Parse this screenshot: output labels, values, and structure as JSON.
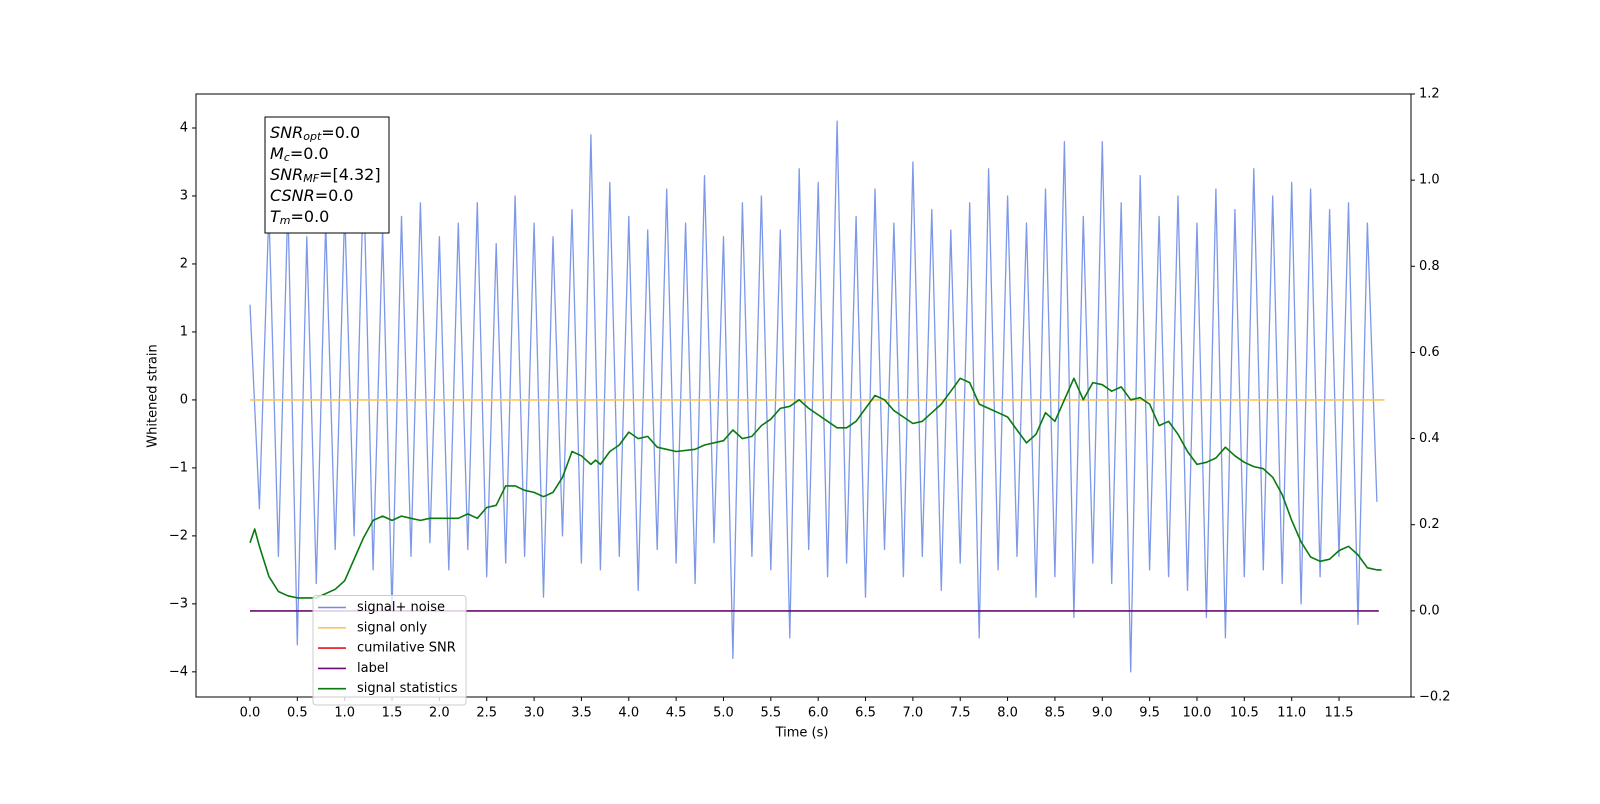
{
  "chart_data": {
    "type": "line",
    "xlabel": "Time (s)",
    "ylabel": "Whitened strain",
    "xlim": [
      -0.57,
      12.26
    ],
    "ylim": [
      -4.37,
      4.5
    ],
    "y2lim": [
      -0.2,
      1.2
    ],
    "xticks": [
      {
        "value": 0,
        "label": "0.0"
      },
      0.5,
      {
        "value": 1,
        "label": "1.0"
      },
      1.5,
      {
        "value": 2,
        "label": "2.0"
      },
      2.5,
      {
        "value": 3,
        "label": "3.0"
      },
      3.5,
      {
        "value": 4,
        "label": "4.0"
      },
      4.5,
      {
        "value": 5,
        "label": "5.0"
      },
      5.5,
      {
        "value": 6,
        "label": "6.0"
      },
      6.5,
      {
        "value": 7,
        "label": "7.0"
      },
      7.5,
      {
        "value": 8,
        "label": "8.0"
      },
      8.5,
      {
        "value": 9,
        "label": "9.0"
      },
      9.5,
      {
        "value": 10,
        "label": "10.0"
      },
      10.5,
      {
        "value": 11,
        "label": "11.0"
      },
      11.5
    ],
    "yticks": [
      {
        "value": -4,
        "label": "−4"
      },
      {
        "value": -3,
        "label": "−3"
      },
      {
        "value": -2,
        "label": "−2"
      },
      {
        "value": -1,
        "label": "−1"
      },
      0,
      1,
      2,
      3,
      4
    ],
    "y2ticks": [
      {
        "value": -0.2,
        "label": "−0.2"
      },
      {
        "value": 0,
        "label": "0.0"
      },
      0.2,
      0.4,
      0.6,
      0.8,
      {
        "value": 1,
        "label": "1.0"
      },
      1.2
    ],
    "grid": false,
    "legend": "lower left",
    "annotation": [
      {
        "base": "SNR",
        "sub": "opt",
        "text": "=0.0"
      },
      {
        "base": "M",
        "sub": "c",
        "text": "=0.0"
      },
      {
        "base": "SNR",
        "sub": "MF",
        "text": "=[4.32]"
      },
      {
        "base": "CSNR",
        "text": "=0.0"
      },
      {
        "base": "T",
        "sub": "m",
        "text": "=0.0"
      }
    ],
    "series": [
      {
        "name": "signal+ noise",
        "color": "#6f8de6",
        "x": [
          0.0,
          0.1,
          0.2,
          0.3,
          0.4,
          0.5,
          0.6,
          0.7,
          0.8,
          0.9,
          1.0,
          1.1,
          1.2,
          1.3,
          1.4,
          1.5,
          1.6,
          1.7,
          1.8,
          1.9,
          2.0,
          2.1,
          2.2,
          2.3,
          2.4,
          2.5,
          2.6,
          2.7,
          2.8,
          2.9,
          3.0,
          3.1,
          3.2,
          3.3,
          3.4,
          3.5,
          3.6,
          3.7,
          3.8,
          3.9,
          4.0,
          4.1,
          4.2,
          4.3,
          4.4,
          4.5,
          4.6,
          4.7,
          4.8,
          4.9,
          5.0,
          5.1,
          5.2,
          5.3,
          5.4,
          5.5,
          5.6,
          5.7,
          5.8,
          5.9,
          6.0,
          6.1,
          6.2,
          6.3,
          6.4,
          6.5,
          6.6,
          6.7,
          6.8,
          6.9,
          7.0,
          7.1,
          7.2,
          7.3,
          7.4,
          7.5,
          7.6,
          7.7,
          7.8,
          7.9,
          8.0,
          8.1,
          8.2,
          8.3,
          8.4,
          8.5,
          8.6,
          8.7,
          8.8,
          8.9,
          9.0,
          9.1,
          9.2,
          9.3,
          9.4,
          9.5,
          9.6,
          9.7,
          9.8,
          9.9,
          10.0,
          10.1,
          10.2,
          10.3,
          10.4,
          10.5,
          10.6,
          10.7,
          10.8,
          10.9,
          11.0,
          11.1,
          11.2,
          11.3,
          11.4,
          11.5,
          11.6,
          11.7,
          11.8,
          11.9
        ],
        "values": [
          1.4,
          -1.6,
          2.8,
          -2.3,
          2.9,
          -3.6,
          2.4,
          -2.7,
          2.6,
          -2.2,
          2.8,
          -2.0,
          3.3,
          -2.5,
          2.5,
          -3.1,
          2.7,
          -2.3,
          2.9,
          -2.1,
          2.4,
          -2.5,
          2.6,
          -2.2,
          2.9,
          -2.6,
          2.3,
          -2.4,
          3.0,
          -2.3,
          2.6,
          -2.9,
          2.4,
          -2.0,
          2.8,
          -2.4,
          3.9,
          -2.5,
          3.2,
          -2.3,
          2.7,
          -2.8,
          2.5,
          -2.2,
          3.1,
          -2.4,
          2.6,
          -2.7,
          3.3,
          -2.1,
          2.4,
          -3.8,
          2.9,
          -2.3,
          3.0,
          -2.5,
          2.5,
          -3.5,
          3.4,
          -2.2,
          3.2,
          -2.6,
          4.1,
          -2.4,
          2.7,
          -2.9,
          3.1,
          -2.2,
          2.6,
          -2.6,
          3.5,
          -2.3,
          2.8,
          -2.8,
          2.5,
          -2.4,
          2.9,
          -3.5,
          3.4,
          -2.5,
          3.0,
          -2.3,
          2.6,
          -2.9,
          3.1,
          -2.6,
          3.8,
          -3.2,
          2.7,
          -2.4,
          3.8,
          -2.7,
          2.9,
          -4.0,
          3.3,
          -2.5,
          2.7,
          -2.6,
          3.0,
          -2.8,
          2.6,
          -3.2,
          3.1,
          -3.5,
          2.8,
          -2.6,
          3.4,
          -2.5,
          3.0,
          -2.7,
          3.2,
          -3.0,
          3.1,
          -2.6,
          2.8,
          -2.3,
          2.9,
          -3.3,
          2.6,
          -1.5
        ]
      },
      {
        "name": "signal only",
        "color": "#ffc55a",
        "x": [
          0,
          11.98
        ],
        "values": [
          0,
          0
        ]
      },
      {
        "name": "cumilative SNR",
        "color": "#e8151b"
      },
      {
        "name": "label",
        "color": "#6a0d73",
        "axis": "y2",
        "x": [
          0,
          11.92
        ],
        "values": [
          0,
          0
        ]
      },
      {
        "name": "signal statistics",
        "color": "#087a0e",
        "axis": "y2",
        "x": [
          0.0,
          0.05,
          0.1,
          0.2,
          0.3,
          0.4,
          0.5,
          0.7,
          0.9,
          1.0,
          1.1,
          1.2,
          1.3,
          1.4,
          1.5,
          1.6,
          1.7,
          1.8,
          1.9,
          2.0,
          2.2,
          2.3,
          2.4,
          2.5,
          2.6,
          2.7,
          2.8,
          2.9,
          3.0,
          3.1,
          3.2,
          3.3,
          3.4,
          3.5,
          3.6,
          3.65,
          3.7,
          3.8,
          3.9,
          4.0,
          4.1,
          4.2,
          4.3,
          4.5,
          4.7,
          4.8,
          5.0,
          5.1,
          5.2,
          5.3,
          5.4,
          5.5,
          5.6,
          5.7,
          5.8,
          5.9,
          6.0,
          6.1,
          6.2,
          6.3,
          6.4,
          6.5,
          6.6,
          6.7,
          6.8,
          6.9,
          7.0,
          7.1,
          7.2,
          7.3,
          7.4,
          7.5,
          7.6,
          7.7,
          7.8,
          7.9,
          8.0,
          8.1,
          8.2,
          8.3,
          8.4,
          8.5,
          8.6,
          8.7,
          8.8,
          8.9,
          9.0,
          9.1,
          9.2,
          9.3,
          9.4,
          9.5,
          9.6,
          9.7,
          9.8,
          9.9,
          10.0,
          10.1,
          10.2,
          10.3,
          10.4,
          10.5,
          10.6,
          10.7,
          10.8,
          10.9,
          11.0,
          11.1,
          11.2,
          11.3,
          11.4,
          11.5,
          11.6,
          11.7,
          11.8,
          11.9,
          11.95
        ],
        "values": [
          0.158,
          0.19,
          0.15,
          0.08,
          0.045,
          0.035,
          0.03,
          0.03,
          0.05,
          0.07,
          0.12,
          0.17,
          0.21,
          0.22,
          0.21,
          0.22,
          0.215,
          0.21,
          0.215,
          0.215,
          0.215,
          0.225,
          0.215,
          0.24,
          0.245,
          0.29,
          0.29,
          0.28,
          0.275,
          0.265,
          0.275,
          0.31,
          0.37,
          0.36,
          0.34,
          0.35,
          0.34,
          0.37,
          0.385,
          0.415,
          0.4,
          0.405,
          0.38,
          0.37,
          0.375,
          0.385,
          0.395,
          0.42,
          0.4,
          0.405,
          0.43,
          0.445,
          0.47,
          0.475,
          0.49,
          0.47,
          0.455,
          0.44,
          0.425,
          0.425,
          0.44,
          0.47,
          0.5,
          0.49,
          0.465,
          0.45,
          0.435,
          0.44,
          0.46,
          0.48,
          0.51,
          0.54,
          0.53,
          0.48,
          0.47,
          0.46,
          0.45,
          0.42,
          0.39,
          0.41,
          0.46,
          0.44,
          0.49,
          0.54,
          0.49,
          0.53,
          0.525,
          0.51,
          0.52,
          0.49,
          0.495,
          0.48,
          0.43,
          0.44,
          0.41,
          0.37,
          0.34,
          0.345,
          0.355,
          0.38,
          0.36,
          0.345,
          0.335,
          0.33,
          0.31,
          0.27,
          0.21,
          0.16,
          0.125,
          0.115,
          0.12,
          0.14,
          0.15,
          0.13,
          0.1,
          0.095,
          0.095
        ]
      }
    ]
  }
}
